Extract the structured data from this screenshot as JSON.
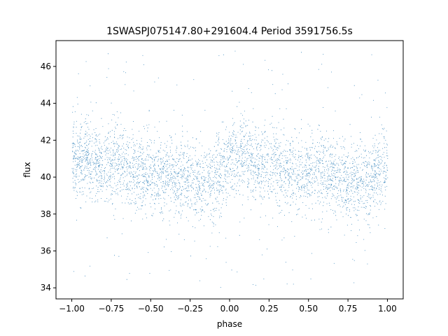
{
  "chart_data": {
    "type": "scatter",
    "title": "1SWASPJ075147.80+291604.4 Period 3591756.5s",
    "xlabel": "phase",
    "ylabel": "flux",
    "xlim": [
      -1.1,
      1.1
    ],
    "ylim": [
      33.4,
      47.4
    ],
    "xticks": [
      -1.0,
      -0.75,
      -0.5,
      -0.25,
      0.0,
      0.25,
      0.5,
      0.75,
      1.0
    ],
    "xtick_labels": [
      "−1.00",
      "−0.75",
      "−0.50",
      "−0.25",
      "0.00",
      "0.25",
      "0.50",
      "0.75",
      "1.00"
    ],
    "yticks": [
      34,
      36,
      38,
      40,
      42,
      44,
      46
    ],
    "ytick_labels": [
      "34",
      "36",
      "38",
      "40",
      "42",
      "44",
      "46"
    ],
    "grid": false,
    "marker_color": "#1f77b4",
    "series": [
      {
        "x_range": [
          -1.0,
          1.0
        ],
        "y_range": [
          34.0,
          47.0
        ],
        "mean_profile": {
          "x": [
            -1.0,
            -0.9,
            -0.8,
            -0.7,
            -0.6,
            -0.5,
            -0.4,
            -0.3,
            -0.2,
            -0.1,
            0.0,
            0.1,
            0.2,
            0.3,
            0.4,
            0.5,
            0.6,
            0.7,
            0.8,
            0.9,
            1.0
          ],
          "y": [
            40.9,
            41.1,
            40.6,
            40.9,
            40.3,
            40.1,
            40.2,
            39.9,
            39.6,
            39.9,
            40.9,
            41.1,
            40.6,
            40.9,
            40.3,
            40.1,
            40.2,
            39.9,
            39.6,
            39.9,
            40.9
          ]
        }
      }
    ]
  }
}
